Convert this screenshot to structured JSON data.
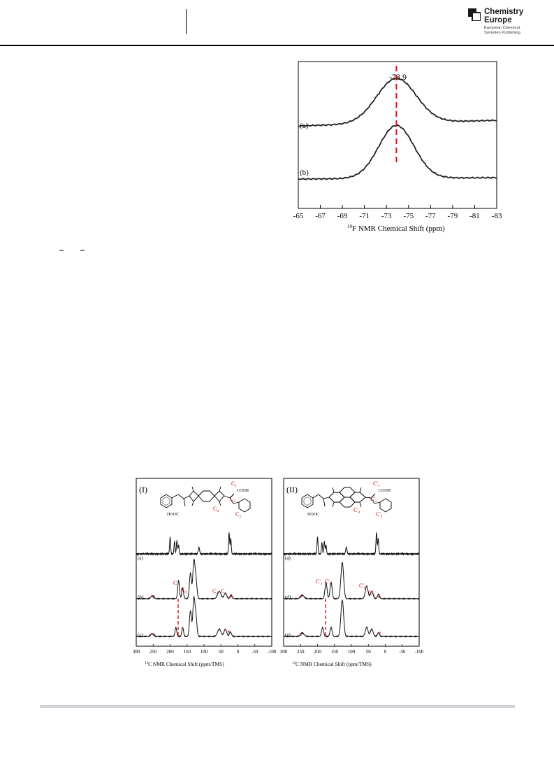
{
  "header": {
    "publisher_name_line1": "Chemistry",
    "publisher_name_line2": "Europe",
    "publisher_sub_line1": "European Chemical",
    "publisher_sub_line2": "Societies Publishing"
  },
  "figures": {
    "fluorine_nmr": {
      "peak_label": "-73.9",
      "spectra": [
        {
          "label": "(a)"
        },
        {
          "label": "(b)"
        }
      ],
      "xaxis_label_sup": "19",
      "xaxis_label_text": "F NMR Chemical Shift (ppm)"
    },
    "carbon_nmr_I": {
      "panel_label": "(I)",
      "spectra_labels": [
        "(a)",
        "(b)",
        "(c)"
      ],
      "xaxis_label_sup": "13",
      "xaxis_label_text": "C NMR Chemical Shift (ppm/TMS)",
      "structure_labels": {
        "c1": "C",
        "c1_sub": "1",
        "cooh": "COOH",
        "hooc": "HOOC",
        "c4": "C",
        "c4_sub": "4",
        "c3": "C",
        "c3_sub": "3",
        "c2": "C",
        "c2_sub": "2"
      },
      "peak_labels": [
        {
          "text": "C",
          "sub": "1"
        },
        {
          "text": "C",
          "sub": "4"
        },
        {
          "text": "C",
          "sub": "2"
        },
        {
          "text": "C",
          "sub": "3"
        }
      ],
      "asterisk": "*"
    },
    "carbon_nmr_II": {
      "panel_label": "(II)",
      "spectra_labels": [
        "(a)",
        "(d)",
        "(e)"
      ],
      "xaxis_label_sup": "13",
      "xaxis_label_text": "C NMR Chemical Shift (ppm/TMS)",
      "structure_labels": {
        "c1": "C'",
        "c1_sub": "1",
        "cooh": "COOH",
        "hooc": "HOOC",
        "c4": "C'",
        "c4_sub": "4",
        "c3": "C'",
        "c3_sub": "3",
        "c2": "C'",
        "c2_sub": "2"
      },
      "peak_labels": [
        {
          "text": "C'",
          "sub": "1"
        },
        {
          "text": "C'",
          "sub": "4"
        },
        {
          "text": "C'",
          "sub": "2"
        },
        {
          "text": "C'",
          "sub": "3"
        }
      ],
      "asterisk": "*"
    }
  },
  "chart_data": [
    {
      "type": "line",
      "xlabel": "19F NMR Chemical Shift (ppm)",
      "xlim": [
        -65,
        -83
      ],
      "x_ticks": [
        -65,
        -67,
        -69,
        -71,
        -73,
        -75,
        -77,
        -79,
        -81,
        -83
      ],
      "annotations": [
        {
          "text": "-73.9",
          "x": -73.9
        }
      ],
      "series": [
        {
          "name": "(a)",
          "peak_x": -73.9,
          "width": 1.8,
          "baseline": 0.0,
          "height": 1.0
        },
        {
          "name": "(b)",
          "peak_x": -73.9,
          "width": 1.6,
          "baseline": 0.0,
          "height": 1.05
        }
      ]
    },
    {
      "type": "line",
      "xlabel": "13C NMR Chemical Shift (ppm/TMS)",
      "xlim": [
        300,
        -100
      ],
      "x_ticks": [
        300,
        250,
        200,
        150,
        100,
        50,
        0,
        -50,
        -100
      ],
      "series": [
        {
          "name": "(a)",
          "peaks": [
            [
              200,
              0.75,
              1.5
            ],
            [
              187,
              0.55,
              1.5
            ],
            [
              180,
              0.6,
              1.5
            ],
            [
              175,
              0.4,
              1.5
            ],
            [
              115,
              0.3,
              2
            ],
            [
              26,
              0.95,
              1.5
            ],
            [
              21,
              0.7,
              1.5
            ]
          ]
        },
        {
          "name": "(b)",
          "peaks": [
            [
              253,
              0.08,
              4
            ],
            [
              175,
              0.5,
              2.5
            ],
            [
              163,
              0.3,
              2.5
            ],
            [
              140,
              0.7,
              3
            ],
            [
              130,
              1.0,
              3
            ],
            [
              124,
              0.55,
              3
            ],
            [
              55,
              0.2,
              5
            ],
            [
              37,
              0.15,
              4
            ],
            [
              20,
              0.1,
              3
            ]
          ]
        },
        {
          "name": "(c)",
          "peaks": [
            [
              253,
              0.08,
              4
            ],
            [
              183,
              0.25,
              2.5
            ],
            [
              163,
              0.25,
              2.5
            ],
            [
              140,
              0.7,
              3
            ],
            [
              130,
              1.0,
              3
            ],
            [
              124,
              0.55,
              3
            ],
            [
              55,
              0.2,
              5
            ],
            [
              37,
              0.2,
              4
            ],
            [
              22,
              0.12,
              3
            ]
          ]
        }
      ]
    },
    {
      "type": "line",
      "xlabel": "13C NMR Chemical Shift (ppm/TMS)",
      "xlim": [
        300,
        -100
      ],
      "x_ticks": [
        300,
        250,
        200,
        150,
        100,
        50,
        0,
        -50,
        -100
      ],
      "series": [
        {
          "name": "(a)",
          "peaks": [
            [
              200,
              0.75,
              1.5
            ],
            [
              187,
              0.5,
              1.5
            ],
            [
              180,
              0.55,
              1.5
            ],
            [
              175,
              0.4,
              1.5
            ],
            [
              115,
              0.3,
              2
            ],
            [
              26,
              0.95,
              1.5
            ],
            [
              21,
              0.7,
              1.5
            ]
          ]
        },
        {
          "name": "(d)",
          "peaks": [
            [
              245,
              0.1,
              5
            ],
            [
              175,
              0.45,
              3
            ],
            [
              160,
              0.45,
              3
            ],
            [
              127,
              1.0,
              4
            ],
            [
              55,
              0.35,
              4
            ],
            [
              40,
              0.2,
              4
            ],
            [
              20,
              0.12,
              3
            ]
          ]
        },
        {
          "name": "(e)",
          "peaks": [
            [
              245,
              0.1,
              5
            ],
            [
              185,
              0.25,
              3
            ],
            [
              160,
              0.25,
              3
            ],
            [
              127,
              1.0,
              4
            ],
            [
              55,
              0.25,
              4
            ],
            [
              40,
              0.2,
              4
            ],
            [
              20,
              0.1,
              3
            ]
          ]
        }
      ]
    }
  ]
}
